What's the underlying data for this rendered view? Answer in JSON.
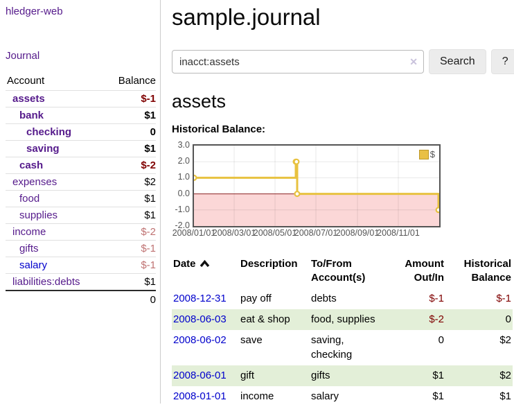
{
  "brand": "hledger-web",
  "nav": {
    "journal": "Journal"
  },
  "sidebar": {
    "accounts_header": {
      "account": "Account",
      "balance": "Balance"
    },
    "accounts": [
      {
        "name": "assets",
        "depth": 0,
        "emphasis": true,
        "link_tone": "visited",
        "balance": "$-1",
        "balance_tone": "neg"
      },
      {
        "name": "bank",
        "depth": 1,
        "emphasis": true,
        "link_tone": "visited",
        "balance": "$1",
        "balance_tone": "pos"
      },
      {
        "name": "checking",
        "depth": 2,
        "emphasis": true,
        "link_tone": "visited",
        "balance": "0",
        "balance_tone": "pos"
      },
      {
        "name": "saving",
        "depth": 2,
        "emphasis": true,
        "link_tone": "visited",
        "balance": "$1",
        "balance_tone": "pos"
      },
      {
        "name": "cash",
        "depth": 1,
        "emphasis": true,
        "link_tone": "visited",
        "balance": "$-2",
        "balance_tone": "neg"
      },
      {
        "name": "expenses",
        "depth": 0,
        "emphasis": false,
        "link_tone": "visited",
        "balance": "$2",
        "balance_tone": "pos"
      },
      {
        "name": "food",
        "depth": 1,
        "emphasis": false,
        "link_tone": "visited",
        "balance": "$1",
        "balance_tone": "pos"
      },
      {
        "name": "supplies",
        "depth": 1,
        "emphasis": false,
        "link_tone": "visited",
        "balance": "$1",
        "balance_tone": "pos"
      },
      {
        "name": "income",
        "depth": 0,
        "emphasis": false,
        "link_tone": "visited",
        "balance": "$-2",
        "balance_tone": "negfade"
      },
      {
        "name": "gifts",
        "depth": 1,
        "emphasis": false,
        "link_tone": "visited",
        "balance": "$-1",
        "balance_tone": "negfade"
      },
      {
        "name": "salary",
        "depth": 1,
        "emphasis": false,
        "link_tone": "new",
        "balance": "$-1",
        "balance_tone": "negfade"
      },
      {
        "name": "liabilities:debts",
        "depth": 0,
        "emphasis": false,
        "link_tone": "visited",
        "balance": "$1",
        "balance_tone": "pos"
      }
    ],
    "total": "0"
  },
  "main": {
    "title": "sample.journal",
    "search": {
      "value": "inacct:assets",
      "clear_icon": "✕",
      "button_label": "Search",
      "help_label": "?"
    },
    "account_title": "assets",
    "chart_title": "Historical Balance:"
  },
  "chart_data": {
    "type": "line",
    "step": true,
    "title": "Historical Balance:",
    "series": [
      {
        "name": "$",
        "color": "#e8c240",
        "points": [
          [
            "2008-01-01",
            1
          ],
          [
            "2008-06-01",
            2
          ],
          [
            "2008-06-02",
            2
          ],
          [
            "2008-06-03",
            0
          ],
          [
            "2008-12-31",
            -1
          ]
        ]
      }
    ],
    "x_range": [
      "2008-01-01",
      "2009-01-01"
    ],
    "ylim": [
      -2,
      3
    ],
    "y_ticks": [
      3.0,
      2.0,
      1.0,
      0.0,
      -1.0,
      -2.0
    ],
    "x_ticks": [
      {
        "date": "2008-01-01",
        "label": "2008/01/01"
      },
      {
        "date": "2008-03-01",
        "label": "2008/03/01"
      },
      {
        "date": "2008-05-01",
        "label": "2008/05/01"
      },
      {
        "date": "2008-07-01",
        "label": "2008/07/01"
      },
      {
        "date": "2008-09-01",
        "label": "2008/09/01"
      },
      {
        "date": "2008-11-01",
        "label": "2008/11/01"
      }
    ],
    "grid": true,
    "legend": {
      "label": "$",
      "position": "top-right"
    },
    "negative_region": {
      "from": 0,
      "to": -2,
      "fill": "#fbd7d7",
      "zero_line_color": "#8b2020"
    }
  },
  "register": {
    "headers": [
      "Date",
      "Description",
      "To/From Account(s)",
      "Amount Out/In",
      "Historical Balance"
    ],
    "sort": {
      "column": "Date",
      "direction": "ascending"
    },
    "rows": [
      {
        "date": "2008-12-31",
        "description": "pay off",
        "accounts": "debts",
        "amount": "$-1",
        "amount_tone": "neg",
        "balance": "$-1",
        "balance_tone": "neg"
      },
      {
        "date": "2008-06-03",
        "description": "eat & shop",
        "accounts": "food, supplies",
        "amount": "$-2",
        "amount_tone": "neg",
        "balance": "0",
        "balance_tone": "pos"
      },
      {
        "date": "2008-06-02",
        "description": "save",
        "accounts": "saving, checking",
        "amount": "0",
        "amount_tone": "pos",
        "balance": "$2",
        "balance_tone": "pos"
      },
      {
        "date": "2008-06-01",
        "description": "gift",
        "accounts": "gifts",
        "amount": "$1",
        "amount_tone": "pos",
        "balance": "$2",
        "balance_tone": "pos"
      },
      {
        "date": "2008-01-01",
        "description": "income",
        "accounts": "salary",
        "amount": "$1",
        "amount_tone": "pos",
        "balance": "$1",
        "balance_tone": "pos"
      }
    ]
  }
}
